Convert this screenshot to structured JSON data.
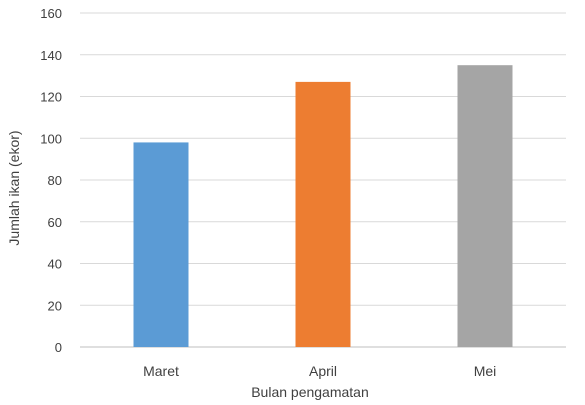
{
  "chart_data": {
    "type": "bar",
    "categories": [
      "Maret",
      "April",
      "Mei"
    ],
    "values": [
      98,
      127,
      135
    ],
    "colors": [
      "#5b9bd5",
      "#ed7d31",
      "#a5a5a5"
    ],
    "xlabel": "Bulan pengamatan",
    "ylabel": "Jumlah ikan (ekor)",
    "ylim": [
      0,
      160
    ],
    "yticks": [
      0,
      20,
      40,
      60,
      80,
      100,
      120,
      140,
      160
    ],
    "grid": true,
    "legend": "none"
  }
}
